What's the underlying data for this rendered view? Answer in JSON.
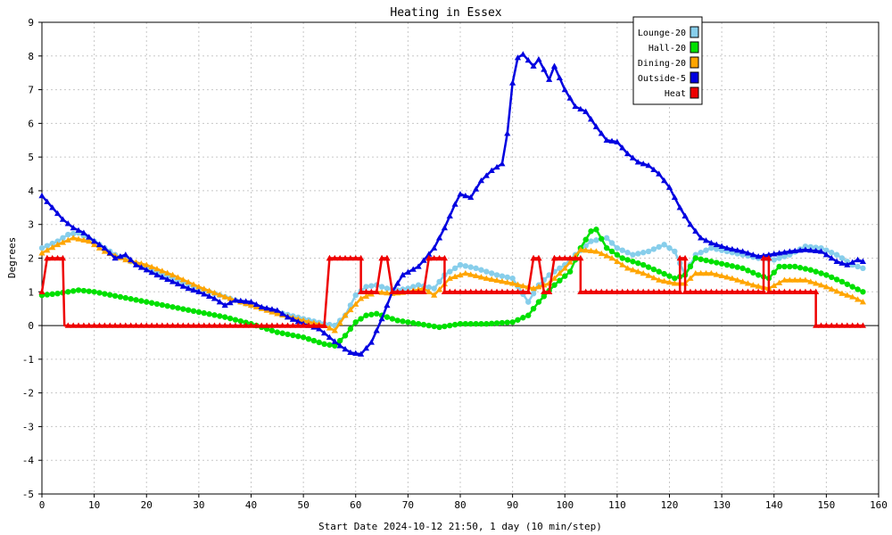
{
  "chart_data": {
    "type": "line",
    "title": "Heating in Essex",
    "xlabel": "Start Date 2024-10-12 21:50, 1 day (10 min/step)",
    "ylabel": "Degrees",
    "xlim": [
      0,
      160
    ],
    "ylim": [
      -5,
      9
    ],
    "x_ticks": [
      0,
      10,
      20,
      30,
      40,
      50,
      60,
      70,
      80,
      90,
      100,
      110,
      120,
      130,
      140,
      150,
      160
    ],
    "y_ticks": [
      -5,
      -4,
      -3,
      -2,
      -1,
      0,
      1,
      2,
      3,
      4,
      5,
      6,
      7,
      8,
      9
    ],
    "grid": true,
    "legend_position": "top-right",
    "series": [
      {
        "name": "Lounge-20",
        "color": "#87ceeb",
        "marker": "circle",
        "points": [
          [
            0,
            2.3
          ],
          [
            3,
            2.5
          ],
          [
            5,
            2.7
          ],
          [
            7,
            2.75
          ],
          [
            10,
            2.5
          ],
          [
            14,
            2.1
          ],
          [
            20,
            1.7
          ],
          [
            25,
            1.4
          ],
          [
            30,
            1.1
          ],
          [
            35,
            0.85
          ],
          [
            40,
            0.6
          ],
          [
            45,
            0.4
          ],
          [
            50,
            0.2
          ],
          [
            54,
            0.05
          ],
          [
            56,
            0.0
          ],
          [
            58,
            0.3
          ],
          [
            60,
            0.9
          ],
          [
            62,
            1.15
          ],
          [
            64,
            1.2
          ],
          [
            66,
            1.1
          ],
          [
            68,
            1.05
          ],
          [
            70,
            1.1
          ],
          [
            72,
            1.2
          ],
          [
            75,
            1.1
          ],
          [
            77,
            1.5
          ],
          [
            80,
            1.8
          ],
          [
            83,
            1.7
          ],
          [
            87,
            1.5
          ],
          [
            90,
            1.4
          ],
          [
            93,
            0.7
          ],
          [
            95,
            1.2
          ],
          [
            97,
            1.5
          ],
          [
            100,
            1.8
          ],
          [
            102,
            2.1
          ],
          [
            105,
            2.5
          ],
          [
            108,
            2.6
          ],
          [
            110,
            2.3
          ],
          [
            113,
            2.1
          ],
          [
            116,
            2.2
          ],
          [
            119,
            2.4
          ],
          [
            121,
            2.2
          ],
          [
            123,
            1.5
          ],
          [
            125,
            2.1
          ],
          [
            128,
            2.3
          ],
          [
            131,
            2.2
          ],
          [
            134,
            2.1
          ],
          [
            137,
            2.0
          ],
          [
            140,
            1.95
          ],
          [
            143,
            2.1
          ],
          [
            146,
            2.35
          ],
          [
            149,
            2.3
          ],
          [
            152,
            2.1
          ],
          [
            155,
            1.8
          ],
          [
            157,
            1.7
          ]
        ]
      },
      {
        "name": "Hall-20",
        "color": "#00e000",
        "marker": "circle",
        "points": [
          [
            0,
            0.9
          ],
          [
            3,
            0.95
          ],
          [
            7,
            1.05
          ],
          [
            10,
            1.0
          ],
          [
            15,
            0.85
          ],
          [
            20,
            0.7
          ],
          [
            25,
            0.55
          ],
          [
            30,
            0.4
          ],
          [
            35,
            0.25
          ],
          [
            40,
            0.05
          ],
          [
            45,
            -0.2
          ],
          [
            50,
            -0.35
          ],
          [
            54,
            -0.55
          ],
          [
            56,
            -0.6
          ],
          [
            58,
            -0.3
          ],
          [
            60,
            0.1
          ],
          [
            62,
            0.3
          ],
          [
            64,
            0.35
          ],
          [
            66,
            0.25
          ],
          [
            68,
            0.15
          ],
          [
            72,
            0.05
          ],
          [
            76,
            -0.05
          ],
          [
            80,
            0.05
          ],
          [
            85,
            0.05
          ],
          [
            90,
            0.1
          ],
          [
            93,
            0.3
          ],
          [
            95,
            0.7
          ],
          [
            98,
            1.2
          ],
          [
            101,
            1.6
          ],
          [
            103,
            2.3
          ],
          [
            105,
            2.8
          ],
          [
            106,
            2.85
          ],
          [
            108,
            2.3
          ],
          [
            111,
            2.0
          ],
          [
            115,
            1.8
          ],
          [
            118,
            1.6
          ],
          [
            121,
            1.4
          ],
          [
            123,
            1.5
          ],
          [
            125,
            2.0
          ],
          [
            128,
            1.9
          ],
          [
            131,
            1.8
          ],
          [
            134,
            1.7
          ],
          [
            137,
            1.5
          ],
          [
            139,
            1.4
          ],
          [
            141,
            1.75
          ],
          [
            144,
            1.75
          ],
          [
            147,
            1.65
          ],
          [
            150,
            1.5
          ],
          [
            153,
            1.3
          ],
          [
            155,
            1.15
          ],
          [
            157,
            1.0
          ]
        ]
      },
      {
        "name": "Dining-20",
        "color": "#ffa500",
        "marker": "triangle",
        "points": [
          [
            0,
            2.15
          ],
          [
            3,
            2.4
          ],
          [
            6,
            2.6
          ],
          [
            9,
            2.5
          ],
          [
            12,
            2.2
          ],
          [
            16,
            1.95
          ],
          [
            20,
            1.8
          ],
          [
            25,
            1.5
          ],
          [
            30,
            1.15
          ],
          [
            35,
            0.85
          ],
          [
            40,
            0.6
          ],
          [
            45,
            0.35
          ],
          [
            50,
            0.15
          ],
          [
            54,
            0.0
          ],
          [
            56,
            -0.15
          ],
          [
            58,
            0.3
          ],
          [
            61,
            0.8
          ],
          [
            64,
            1.0
          ],
          [
            67,
            0.95
          ],
          [
            70,
            1.0
          ],
          [
            73,
            1.1
          ],
          [
            75,
            0.9
          ],
          [
            78,
            1.4
          ],
          [
            81,
            1.55
          ],
          [
            85,
            1.4
          ],
          [
            90,
            1.25
          ],
          [
            94,
            1.1
          ],
          [
            97,
            1.25
          ],
          [
            100,
            1.7
          ],
          [
            103,
            2.25
          ],
          [
            106,
            2.2
          ],
          [
            109,
            2.0
          ],
          [
            112,
            1.7
          ],
          [
            115,
            1.55
          ],
          [
            118,
            1.35
          ],
          [
            121,
            1.25
          ],
          [
            123,
            1.25
          ],
          [
            125,
            1.55
          ],
          [
            128,
            1.55
          ],
          [
            132,
            1.4
          ],
          [
            136,
            1.2
          ],
          [
            139,
            1.1
          ],
          [
            142,
            1.35
          ],
          [
            146,
            1.35
          ],
          [
            150,
            1.15
          ],
          [
            153,
            0.95
          ],
          [
            155,
            0.85
          ],
          [
            157,
            0.7
          ]
        ]
      },
      {
        "name": "Outside-5",
        "color": "#0000e0",
        "marker": "triangle",
        "points": [
          [
            0,
            3.85
          ],
          [
            2,
            3.5
          ],
          [
            4,
            3.15
          ],
          [
            6,
            2.9
          ],
          [
            8,
            2.75
          ],
          [
            10,
            2.5
          ],
          [
            12,
            2.3
          ],
          [
            14,
            2.0
          ],
          [
            16,
            2.1
          ],
          [
            18,
            1.8
          ],
          [
            20,
            1.65
          ],
          [
            22,
            1.5
          ],
          [
            25,
            1.3
          ],
          [
            28,
            1.1
          ],
          [
            30,
            1.0
          ],
          [
            33,
            0.8
          ],
          [
            35,
            0.6
          ],
          [
            37,
            0.75
          ],
          [
            40,
            0.7
          ],
          [
            42,
            0.55
          ],
          [
            45,
            0.45
          ],
          [
            47,
            0.25
          ],
          [
            50,
            0.05
          ],
          [
            53,
            -0.1
          ],
          [
            55,
            -0.35
          ],
          [
            57,
            -0.6
          ],
          [
            59,
            -0.8
          ],
          [
            61,
            -0.85
          ],
          [
            63,
            -0.5
          ],
          [
            65,
            0.2
          ],
          [
            67,
            1.0
          ],
          [
            69,
            1.5
          ],
          [
            72,
            1.75
          ],
          [
            75,
            2.3
          ],
          [
            77,
            2.9
          ],
          [
            79,
            3.6
          ],
          [
            80,
            3.9
          ],
          [
            82,
            3.8
          ],
          [
            84,
            4.3
          ],
          [
            86,
            4.6
          ],
          [
            88,
            4.8
          ],
          [
            89,
            5.7
          ],
          [
            90,
            7.2
          ],
          [
            91,
            7.95
          ],
          [
            92,
            8.05
          ],
          [
            94,
            7.7
          ],
          [
            95,
            7.9
          ],
          [
            97,
            7.3
          ],
          [
            98,
            7.7
          ],
          [
            100,
            7.0
          ],
          [
            102,
            6.5
          ],
          [
            104,
            6.35
          ],
          [
            106,
            5.9
          ],
          [
            108,
            5.5
          ],
          [
            110,
            5.45
          ],
          [
            112,
            5.1
          ],
          [
            114,
            4.85
          ],
          [
            116,
            4.75
          ],
          [
            118,
            4.5
          ],
          [
            120,
            4.1
          ],
          [
            122,
            3.5
          ],
          [
            124,
            3.0
          ],
          [
            126,
            2.6
          ],
          [
            128,
            2.45
          ],
          [
            131,
            2.3
          ],
          [
            134,
            2.2
          ],
          [
            137,
            2.05
          ],
          [
            139,
            2.1
          ],
          [
            141,
            2.15
          ],
          [
            143,
            2.2
          ],
          [
            146,
            2.25
          ],
          [
            149,
            2.2
          ],
          [
            152,
            1.9
          ],
          [
            154,
            1.8
          ],
          [
            156,
            1.95
          ],
          [
            157,
            1.9
          ]
        ]
      },
      {
        "name": "Heat",
        "color": "#ee0000",
        "marker": "triangle",
        "points": [
          [
            0,
            1
          ],
          [
            1,
            2
          ],
          [
            4,
            2
          ],
          [
            4.3,
            0
          ],
          [
            54,
            0
          ],
          [
            55,
            2
          ],
          [
            61,
            2
          ],
          [
            61,
            1
          ],
          [
            64,
            1
          ],
          [
            65,
            2
          ],
          [
            66,
            2
          ],
          [
            67,
            1
          ],
          [
            73,
            1
          ],
          [
            74,
            2
          ],
          [
            77,
            2
          ],
          [
            77,
            1
          ],
          [
            93,
            1
          ],
          [
            94,
            2
          ],
          [
            95,
            2
          ],
          [
            96,
            1
          ],
          [
            97,
            1
          ],
          [
            98,
            2
          ],
          [
            103,
            2
          ],
          [
            103,
            1
          ],
          [
            122,
            1
          ],
          [
            122,
            2
          ],
          [
            123,
            2
          ],
          [
            123,
            1
          ],
          [
            138,
            1
          ],
          [
            138,
            2
          ],
          [
            139,
            2
          ],
          [
            139,
            1
          ],
          [
            148,
            1
          ],
          [
            148,
            0
          ],
          [
            157,
            0
          ]
        ]
      }
    ]
  }
}
